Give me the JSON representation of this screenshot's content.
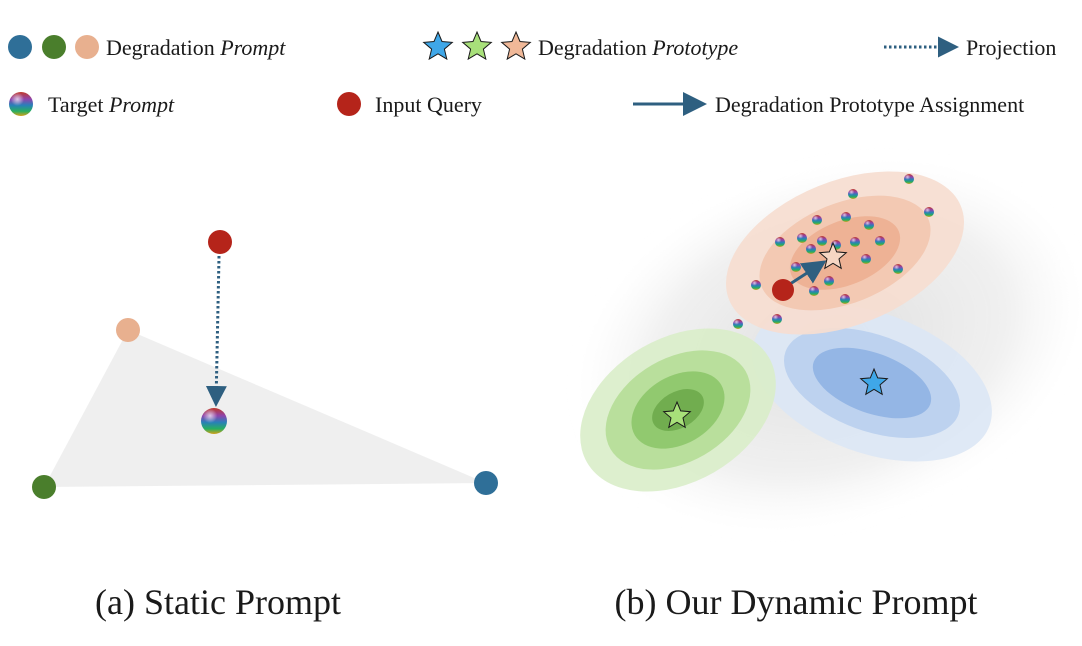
{
  "legend": {
    "degradation_prompt": {
      "label": "Degradation ",
      "emph": "Prompt"
    },
    "degradation_prototype": {
      "label": "Degradation ",
      "emph": "Prototype"
    },
    "projection": {
      "label": "Projection"
    },
    "target_prompt": {
      "label": "Target ",
      "emph": "Prompt"
    },
    "input_query": {
      "label": "Input Query"
    },
    "assignment": {
      "label": "Degradation Prototype Assignment"
    }
  },
  "panels": {
    "static": {
      "caption": "(a) Static Prompt"
    },
    "dynamic": {
      "caption": "(b) Our Dynamic Prompt"
    }
  },
  "colors": {
    "blue_prompt": "#2f6f98",
    "green_prompt": "#4a7e2c",
    "peach_prompt": "#e8b08f",
    "input_query": "#b5241a",
    "star_blue": "#3fa7e8",
    "star_green": "#a8e07a",
    "star_peach": "#f0b898",
    "arrow": "#2e5f80"
  },
  "icons": {
    "prompt_dot": "circle",
    "prototype": "star",
    "target_prompt": "rainbow-sphere"
  }
}
